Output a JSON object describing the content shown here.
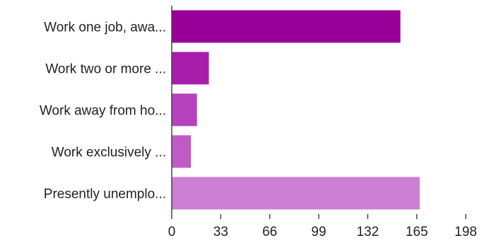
{
  "chart_data": {
    "type": "bar",
    "orientation": "horizontal",
    "categories": [
      "Work one job, awa...",
      "Work two or more ...",
      "Work away from ho...",
      "Work exclusively ...",
      "Presently unemplo..."
    ],
    "values": [
      154,
      25,
      17,
      13,
      167
    ],
    "bar_colors": [
      "#990099",
      "#a81eab",
      "#b541bd",
      "#bf5ac7",
      "#cb80d4"
    ],
    "xticks": [
      0,
      33,
      66,
      99,
      132,
      165,
      198
    ],
    "xlim": [
      0,
      198
    ],
    "grid": false,
    "title": "",
    "xlabel": "",
    "ylabel": ""
  }
}
